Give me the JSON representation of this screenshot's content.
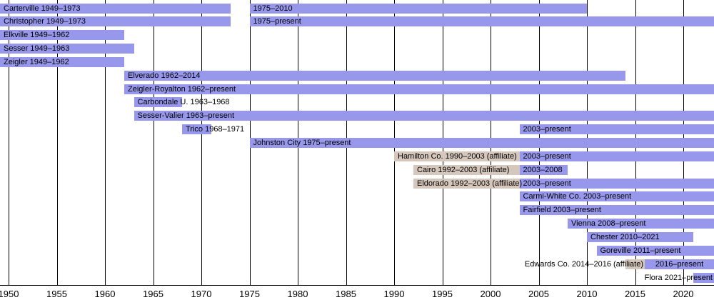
{
  "chart_data": {
    "type": "bar",
    "subtype": "gantt-membership-timeline",
    "x_axis": {
      "ticks": [
        1950,
        1955,
        1960,
        1965,
        1970,
        1975,
        1980,
        1985,
        1990,
        1995,
        2000,
        2005,
        2010,
        2015,
        2020
      ],
      "range_start": 1948.9,
      "range_end": "present",
      "grid": true,
      "legend_position": "none"
    },
    "colors": {
      "member_bar": "#9798ec",
      "affiliate_bar": "#d6c7bc",
      "gridline": "#000000",
      "axis_line": "#000000",
      "text": "#000000",
      "background": "#ffffff"
    },
    "rows": [
      {
        "name": "Carterville",
        "segments": [
          {
            "from": 1949,
            "to": 1973,
            "kind": "member",
            "label": "Carterville 1949–1973",
            "label_align": "left"
          },
          {
            "from": 1975,
            "to": 2010,
            "kind": "member",
            "label": "1975–2010",
            "label_align": "left"
          }
        ]
      },
      {
        "name": "Christopher",
        "segments": [
          {
            "from": 1949,
            "to": 1973,
            "kind": "member",
            "label": "Christopher 1949–1973",
            "label_align": "left"
          },
          {
            "from": 1975,
            "to": "present",
            "kind": "member",
            "label": "1975–present",
            "label_align": "left"
          }
        ]
      },
      {
        "name": "Elkville",
        "segments": [
          {
            "from": 1949,
            "to": 1962,
            "kind": "member",
            "label": "Elkville 1949–1962",
            "label_align": "left"
          }
        ]
      },
      {
        "name": "Sesser",
        "segments": [
          {
            "from": 1949,
            "to": 1963,
            "kind": "member",
            "label": "Sesser 1949–1963",
            "label_align": "left"
          }
        ]
      },
      {
        "name": "Zeigler",
        "segments": [
          {
            "from": 1949,
            "to": 1962,
            "kind": "member",
            "label": "Zeigler 1949–1962",
            "label_align": "left"
          }
        ]
      },
      {
        "name": "Elverado",
        "segments": [
          {
            "from": 1962,
            "to": 2014,
            "kind": "member",
            "label": "Elverado 1962–2014",
            "label_align": "left"
          }
        ]
      },
      {
        "name": "Zeigler-Royalton",
        "segments": [
          {
            "from": 1962,
            "to": "present",
            "kind": "member",
            "label": "Zeigler-Royalton 1962–present",
            "label_align": "left"
          }
        ]
      },
      {
        "name": "Carbondale U.",
        "segments": [
          {
            "from": 1963,
            "to": 1968,
            "kind": "member",
            "label": "Carbondale U. 1963–1968",
            "label_align": "left"
          }
        ]
      },
      {
        "name": "Sesser-Valier",
        "segments": [
          {
            "from": 1963,
            "to": "present",
            "kind": "member",
            "label": "Sesser-Valier 1963–present",
            "label_align": "left"
          }
        ]
      },
      {
        "name": "Trico",
        "segments": [
          {
            "from": 1968,
            "to": 1971,
            "kind": "member",
            "label": "Trico 1968–1971",
            "label_align": "left"
          },
          {
            "from": 2003,
            "to": "present",
            "kind": "member",
            "label": "2003–present",
            "label_align": "left"
          }
        ]
      },
      {
        "name": "Johnston City",
        "segments": [
          {
            "from": 1975,
            "to": "present",
            "kind": "member",
            "label": "Johnston City 1975–present",
            "label_align": "left"
          }
        ]
      },
      {
        "name": "Hamilton Co.",
        "segments": [
          {
            "from": 1990,
            "to": 2003,
            "kind": "affiliate",
            "label": "Hamilton Co. 1990–2003 (affiliate)",
            "label_align": "left"
          },
          {
            "from": 2003,
            "to": "present",
            "kind": "member",
            "label": "2003–present",
            "label_align": "left"
          }
        ]
      },
      {
        "name": "Cairo",
        "segments": [
          {
            "from": 1992,
            "to": 2003,
            "kind": "affiliate",
            "label": "Cairo 1992–2003 (affiliate)",
            "label_align": "left"
          },
          {
            "from": 2003,
            "to": 2008,
            "kind": "member",
            "label": "2003–2008",
            "label_align": "left"
          }
        ]
      },
      {
        "name": "Eldorado",
        "segments": [
          {
            "from": 1992,
            "to": 2003,
            "kind": "affiliate",
            "label": "Eldorado 1992–2003 (affiliate)",
            "label_align": "left"
          },
          {
            "from": 2003,
            "to": "present",
            "kind": "member",
            "label": "2003–present",
            "label_align": "left"
          }
        ]
      },
      {
        "name": "Carmi-White Co.",
        "segments": [
          {
            "from": 2003,
            "to": "present",
            "kind": "member",
            "label": "Carmi-White Co. 2003–present",
            "label_align": "left"
          }
        ]
      },
      {
        "name": "Fairfield",
        "segments": [
          {
            "from": 2003,
            "to": "present",
            "kind": "member",
            "label": "Fairfield 2003–present",
            "label_align": "left"
          }
        ]
      },
      {
        "name": "Vienna",
        "segments": [
          {
            "from": 2008,
            "to": "present",
            "kind": "member",
            "label": "Vienna 2008–present",
            "label_align": "left"
          }
        ]
      },
      {
        "name": "Chester",
        "segments": [
          {
            "from": 2010,
            "to": 2021,
            "kind": "member",
            "label": "Chester 2010–2021",
            "label_align": "left"
          }
        ]
      },
      {
        "name": "Goreville",
        "segments": [
          {
            "from": 2011,
            "to": "present",
            "kind": "member",
            "label": "Goreville 2011–present",
            "label_align": "left"
          }
        ]
      },
      {
        "name": "Edwards Co.",
        "segments": [
          {
            "from": 2014,
            "to": 2016,
            "kind": "affiliate",
            "label": "Edwards Co. 2014–2016 (affiliate)",
            "label_align": "end"
          },
          {
            "from": 2016,
            "to": "present",
            "kind": "member",
            "label": "2016–present",
            "label_align": "center"
          }
        ]
      },
      {
        "name": "Flora",
        "segments": [
          {
            "from": 2021,
            "to": "present",
            "kind": "member",
            "label": "Flora 2021–present",
            "label_align": "end"
          }
        ]
      }
    ]
  }
}
